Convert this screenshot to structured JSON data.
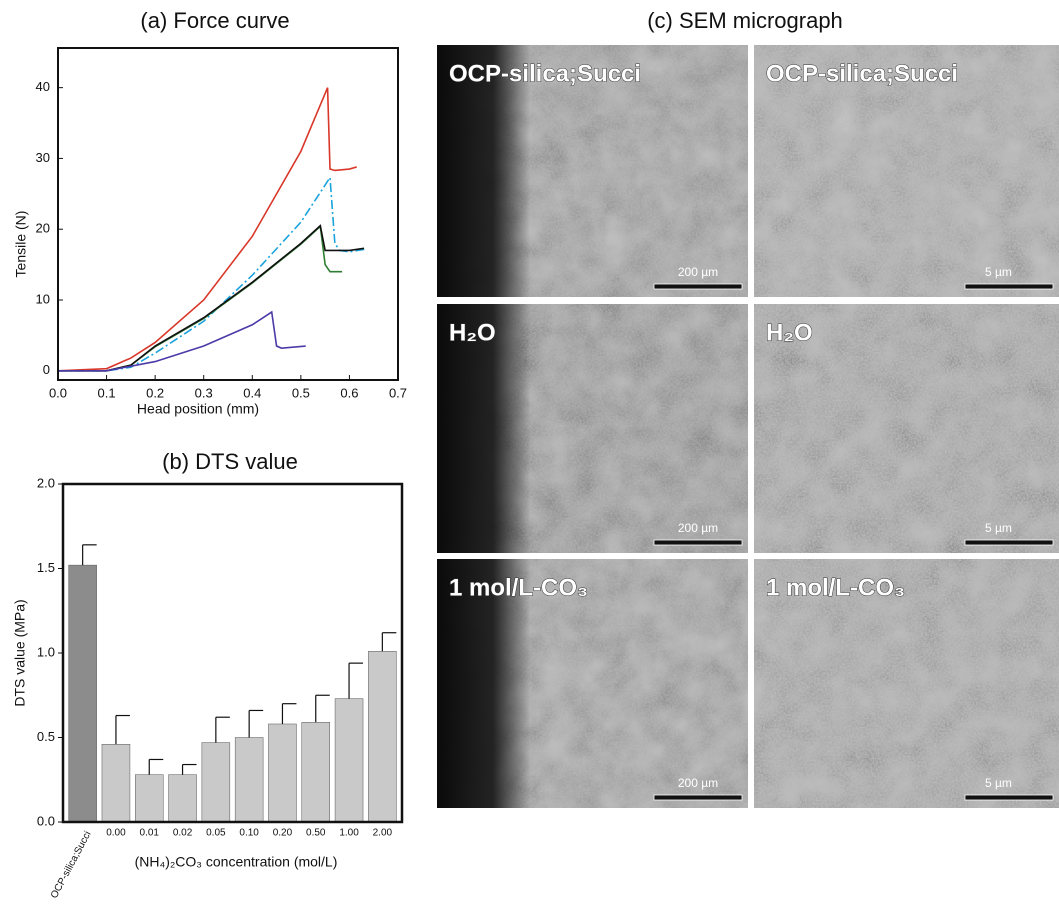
{
  "chart_data": [
    {
      "type": "line",
      "title": "(a) Force curve",
      "x_label": "Head position (mm)",
      "y_label": "Tensile (N)",
      "xlim": [
        0,
        0.7
      ],
      "xticks": [
        {
          "value": 0,
          "label": "0.0"
        },
        0.1,
        0.2,
        0.3,
        0.4,
        0.5,
        0.6,
        0.7
      ],
      "ylim": [
        -1.3,
        45.6
      ],
      "yticks": [
        0,
        10,
        20,
        30,
        40
      ],
      "grid": false,
      "series": [
        {
          "color": "#d9372a",
          "style": "solid",
          "x": [
            0,
            0.1,
            0.15,
            0.2,
            0.3,
            0.4,
            0.5,
            0.555,
            0.56,
            0.57,
            0.6,
            0.615
          ],
          "values": [
            0,
            0.3,
            1.8,
            4,
            10,
            19,
            31,
            40,
            28.5,
            28.3,
            28.5,
            28.8
          ]
        },
        {
          "color": "#1aa3dc",
          "style": "dashdot",
          "x": [
            0,
            0.1,
            0.15,
            0.2,
            0.3,
            0.4,
            0.5,
            0.56,
            0.57,
            0.58,
            0.6,
            0.635
          ],
          "values": [
            0,
            0,
            0.5,
            2.5,
            7,
            13.5,
            21,
            27.3,
            18,
            17,
            16.8,
            17.2
          ]
        },
        {
          "color": "#2e7d32",
          "style": "solid",
          "x": [
            0,
            0.1,
            0.15,
            0.2,
            0.3,
            0.4,
            0.5,
            0.54,
            0.55,
            0.56,
            0.585
          ],
          "values": [
            0,
            0,
            0.8,
            3.4,
            7.4,
            12.4,
            17.9,
            20.4,
            15,
            14,
            14
          ]
        },
        {
          "color": "#111111",
          "style": "solid",
          "x": [
            0,
            0.1,
            0.15,
            0.2,
            0.3,
            0.4,
            0.5,
            0.54,
            0.55,
            0.6,
            0.63
          ],
          "values": [
            0,
            0,
            0.8,
            3.5,
            7.5,
            12.5,
            18,
            20.5,
            17,
            17,
            17.3
          ]
        },
        {
          "color": "#4b3aa8",
          "style": "solid",
          "x": [
            0,
            0.1,
            0.2,
            0.3,
            0.4,
            0.44,
            0.45,
            0.46,
            0.51
          ],
          "values": [
            0,
            0,
            1.3,
            3.5,
            6.5,
            8.3,
            3.5,
            3.2,
            3.5
          ]
        }
      ]
    },
    {
      "type": "bar",
      "title": "(b) DTS value",
      "x_label": "(NH₄)₂CO₃ concentration (mol/L)",
      "y_label": "DTS value (MPa)",
      "categories": [
        "OCP-silica;Succi",
        "0.00",
        "0.01",
        "0.02",
        "0.05",
        "0.10",
        "0.20",
        "0.50",
        "1.00",
        "2.00"
      ],
      "values": [
        1.52,
        0.46,
        0.28,
        0.28,
        0.47,
        0.5,
        0.58,
        0.59,
        0.73,
        1.01
      ],
      "errors": [
        0.12,
        0.17,
        0.09,
        0.06,
        0.15,
        0.16,
        0.12,
        0.16,
        0.21,
        0.11
      ],
      "colors": [
        "#8c8c8c",
        "#c9c9c9",
        "#c9c9c9",
        "#c9c9c9",
        "#c9c9c9",
        "#c9c9c9",
        "#c9c9c9",
        "#c9c9c9",
        "#c9c9c9",
        "#c9c9c9"
      ],
      "ylim": [
        0,
        2
      ],
      "yticks": [
        {
          "value": 0,
          "label": "0.0"
        },
        0.5,
        {
          "value": 1,
          "label": "1.0"
        },
        1.5,
        {
          "value": 2,
          "label": "2.0"
        }
      ]
    }
  ],
  "sem_panel": {
    "title": "(c) SEM micrograph",
    "rows": [
      {
        "label": "OCP-silica;Succi",
        "scale_bars": [
          "200 µm",
          "5 µm"
        ]
      },
      {
        "label": "H₂O",
        "scale_bars": [
          "200 µm",
          "5 µm"
        ]
      },
      {
        "label": "1 mol/L-CO₃",
        "scale_bars": [
          "200 µm",
          "5 µm"
        ]
      }
    ]
  }
}
